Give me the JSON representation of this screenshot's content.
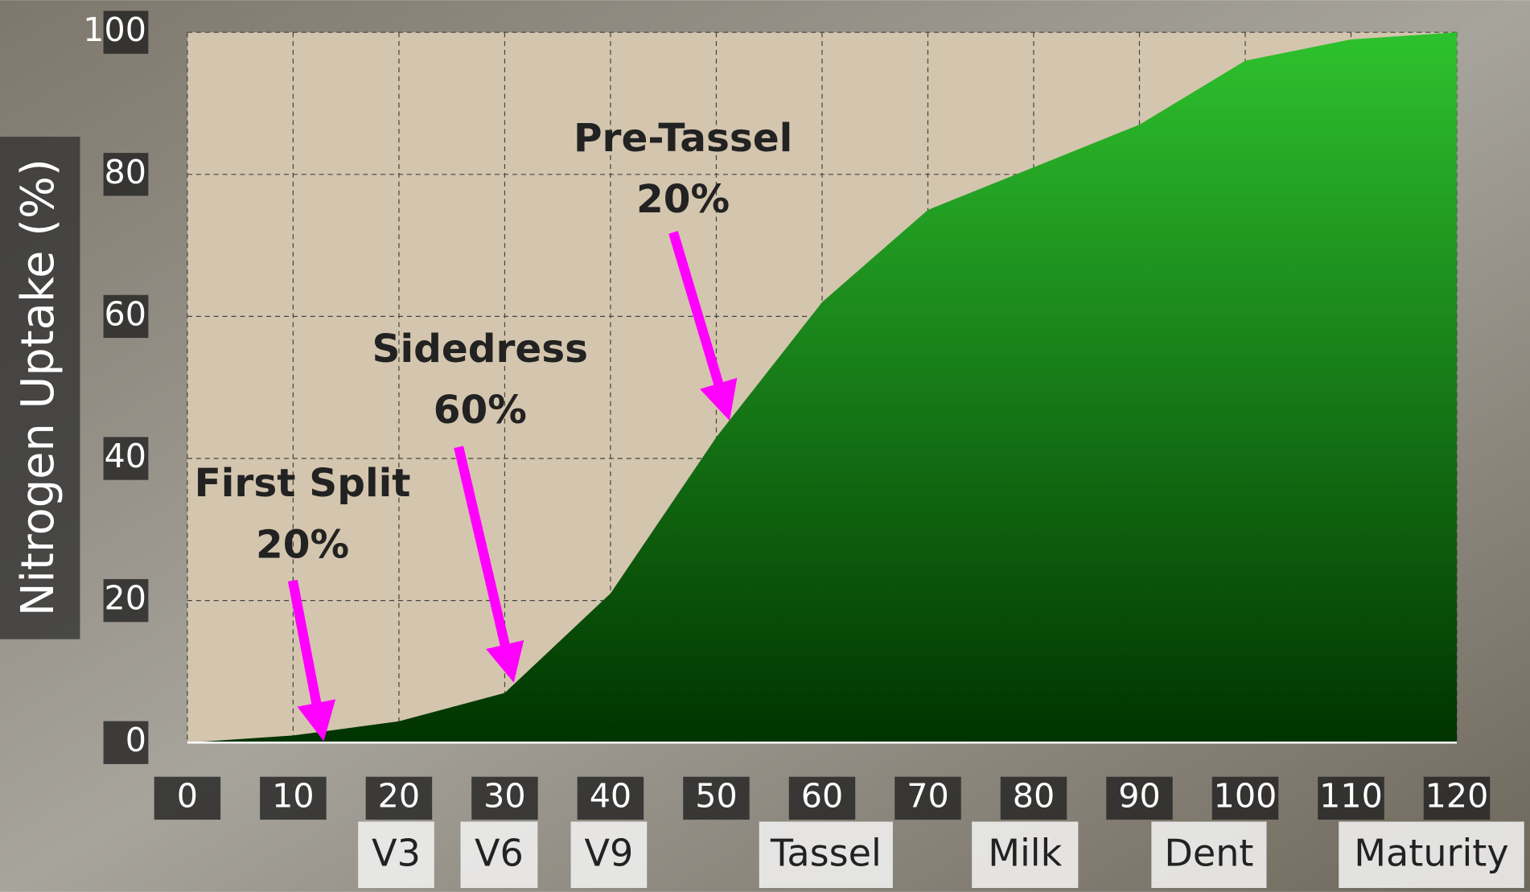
{
  "chart_data": {
    "type": "area",
    "y_label": "Nitrogen Uptake (%)",
    "x": [
      0,
      10,
      20,
      30,
      40,
      50,
      60,
      70,
      80,
      90,
      100,
      110,
      120
    ],
    "values": [
      0,
      1,
      3,
      7,
      21,
      43,
      62,
      75,
      81,
      87,
      96,
      99,
      100
    ],
    "color": "#2ec22e",
    "xlim": [
      0,
      120
    ],
    "xticks": [
      0,
      10,
      20,
      30,
      40,
      50,
      60,
      70,
      80,
      90,
      100,
      110,
      120
    ],
    "ylim": [
      0,
      100
    ],
    "yticks": [
      0,
      20,
      40,
      60,
      80,
      100
    ],
    "grid": true,
    "annotations": [
      {
        "title": "First Split",
        "amount": "20%"
      },
      {
        "title": "Sidedress",
        "amount": "60%"
      },
      {
        "title": "Pre-Tassel",
        "amount": "20%"
      }
    ],
    "stages": [
      "V3",
      "V6",
      "V9",
      "Tassel",
      "Milk",
      "Dent",
      "Maturity"
    ]
  }
}
